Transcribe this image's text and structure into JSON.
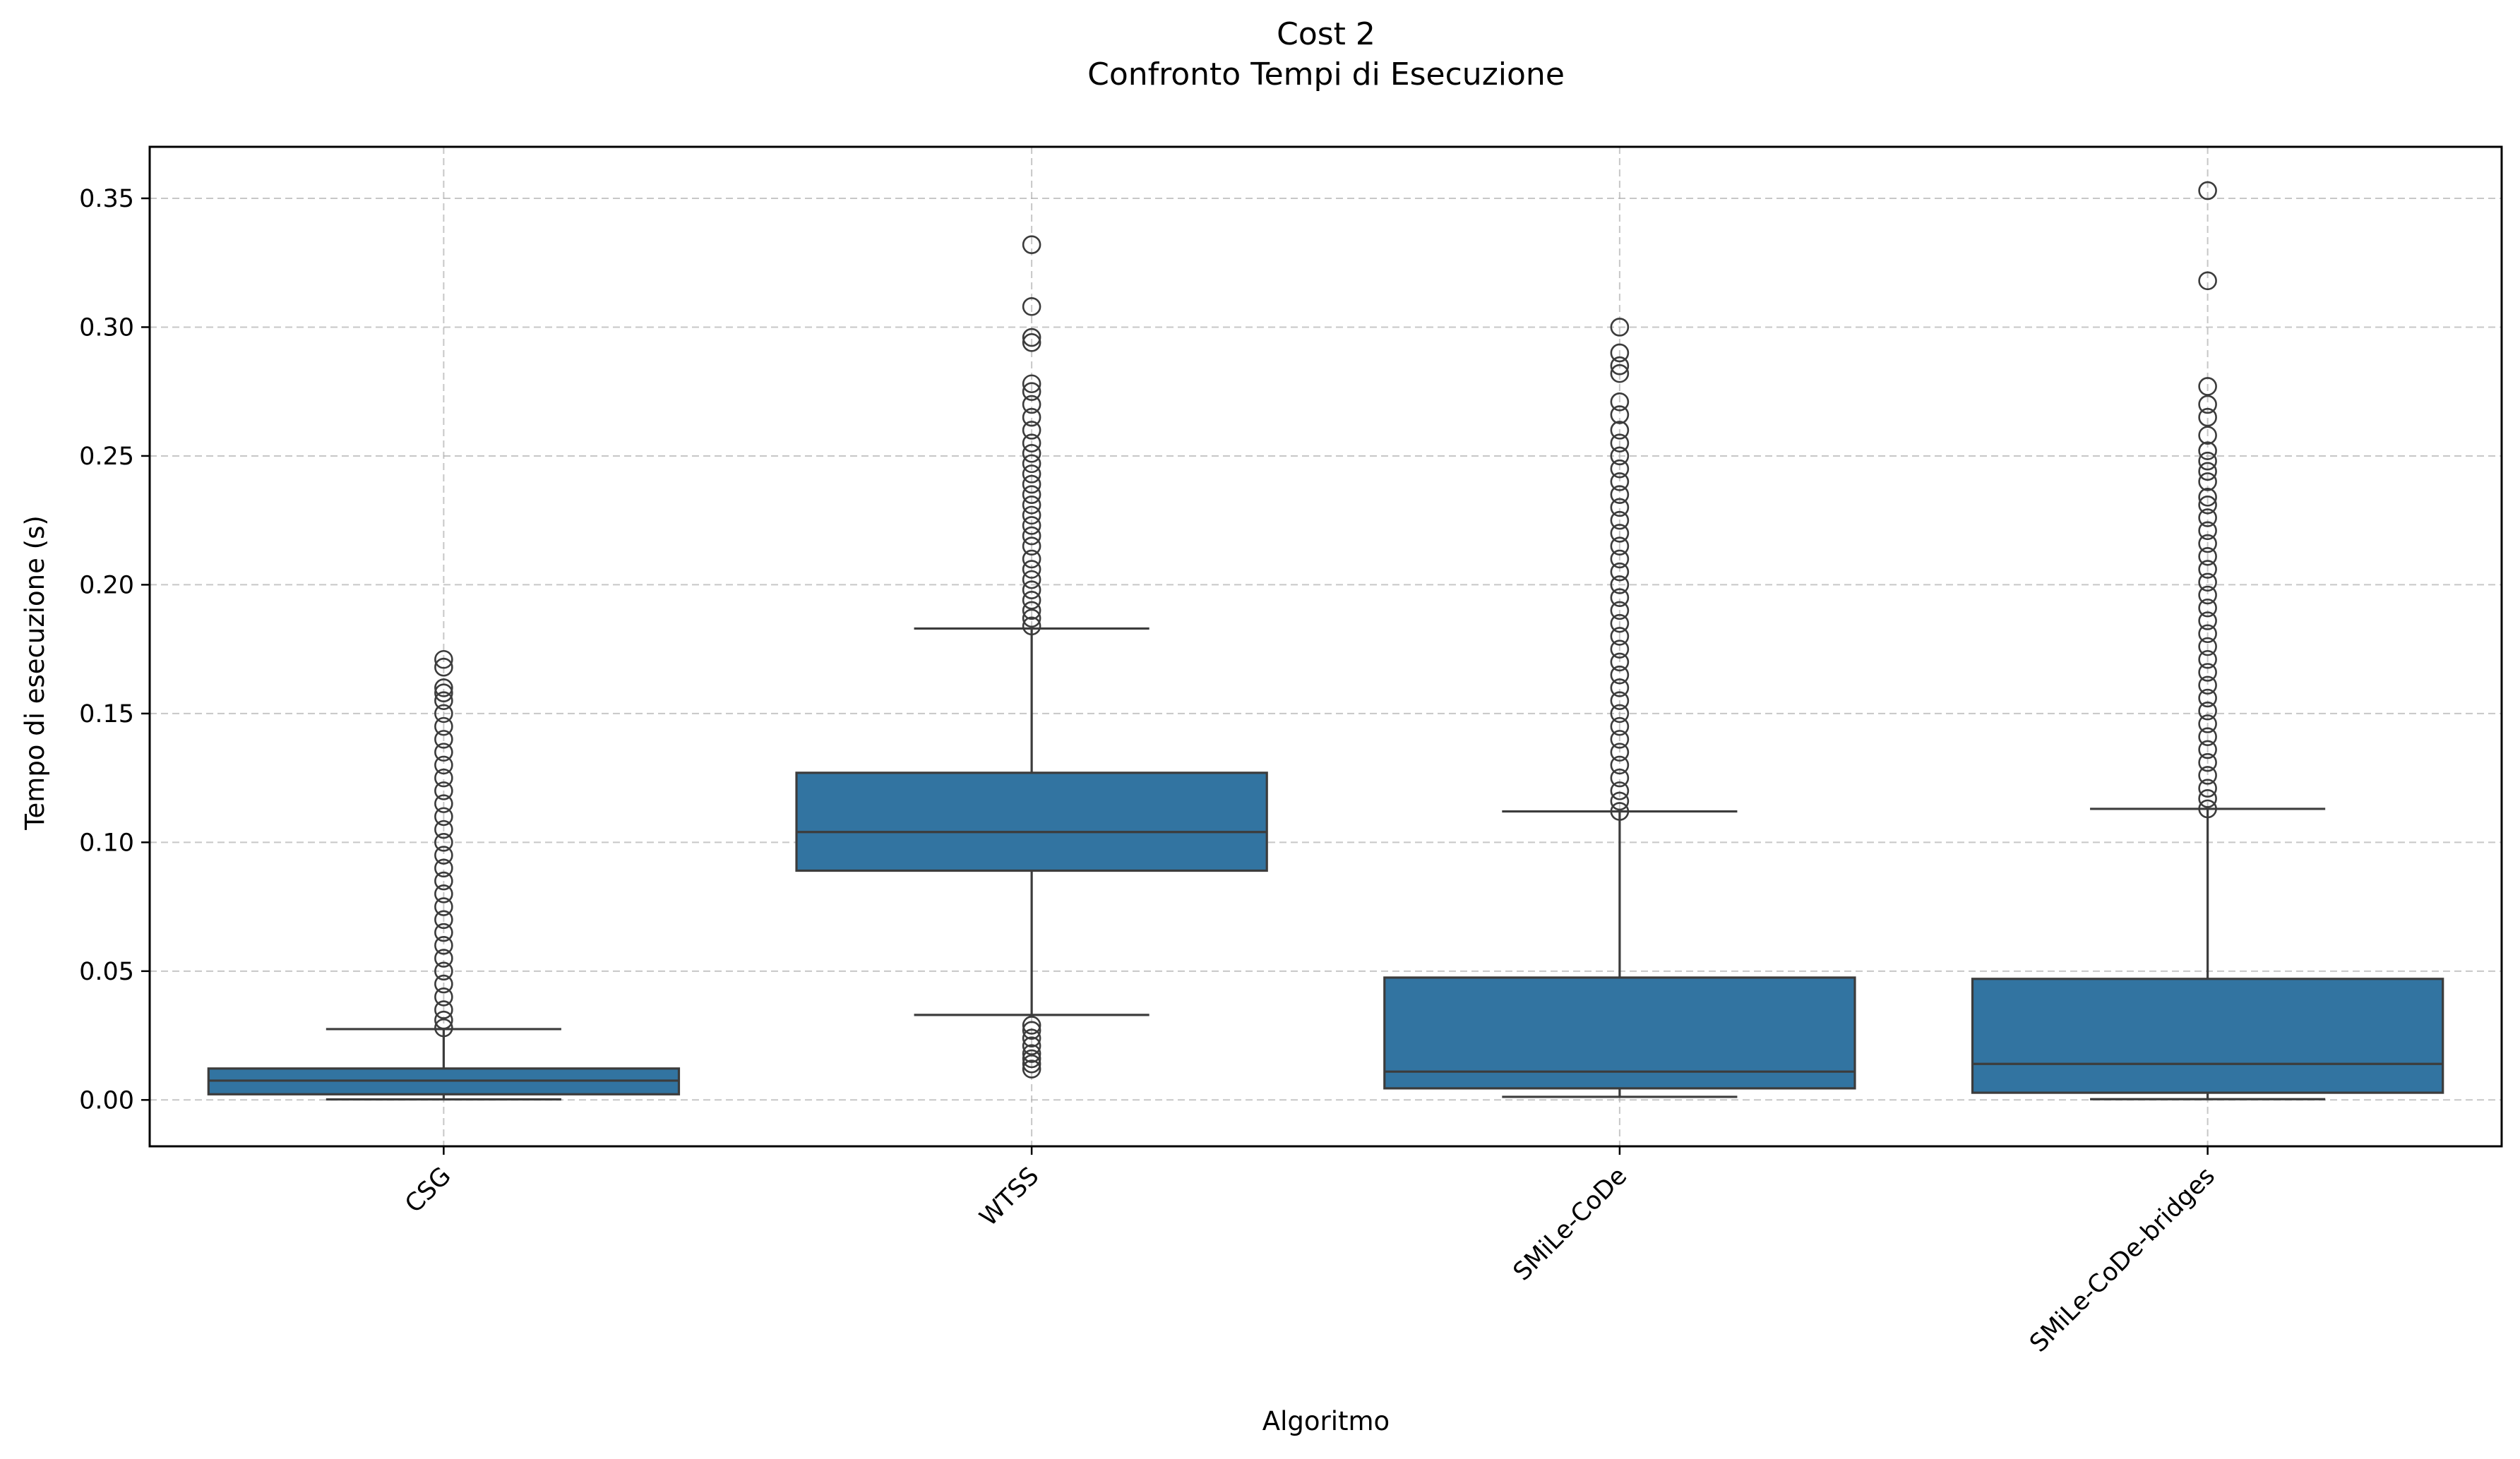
{
  "chart_data": {
    "type": "box",
    "title": "Cost 2",
    "subtitle": "Confronto Tempi di Esecuzione",
    "xlabel": "Algoritmo",
    "ylabel": "Tempo di esecuzione (s)",
    "ylim": [
      -0.018,
      0.37
    ],
    "yticks": [
      0.0,
      0.05,
      0.1,
      0.15,
      0.2,
      0.25,
      0.3,
      0.35
    ],
    "ytick_labels": [
      "0.00",
      "0.05",
      "0.10",
      "0.15",
      "0.20",
      "0.25",
      "0.30",
      "0.35"
    ],
    "grid": true,
    "box_color": "#3274a1",
    "edge_color": "#3c3c3c",
    "categories": [
      "CSG",
      "WTSS",
      "SMiLe-CoDe",
      "SMiLe-CoDe-bridges"
    ],
    "boxes": [
      {
        "category": "CSG",
        "whisker_low": 0.0002,
        "q1": 0.0022,
        "median": 0.0075,
        "q3": 0.0122,
        "whisker_high": 0.0275,
        "fliers_high": [
          0.028,
          0.031,
          0.035,
          0.04,
          0.045,
          0.05,
          0.055,
          0.06,
          0.065,
          0.07,
          0.075,
          0.08,
          0.085,
          0.09,
          0.095,
          0.1,
          0.105,
          0.11,
          0.115,
          0.12,
          0.125,
          0.13,
          0.135,
          0.14,
          0.145,
          0.15,
          0.155,
          0.158,
          0.16,
          0.168,
          0.171
        ],
        "fliers_low": []
      },
      {
        "category": "WTSS",
        "whisker_low": 0.033,
        "q1": 0.089,
        "median": 0.104,
        "q3": 0.127,
        "whisker_high": 0.183,
        "fliers_high": [
          0.184,
          0.187,
          0.19,
          0.194,
          0.198,
          0.202,
          0.206,
          0.21,
          0.215,
          0.219,
          0.223,
          0.227,
          0.231,
          0.235,
          0.239,
          0.243,
          0.247,
          0.251,
          0.255,
          0.26,
          0.265,
          0.27,
          0.275,
          0.278,
          0.294,
          0.296,
          0.308,
          0.332
        ],
        "fliers_low": [
          0.012,
          0.014,
          0.016,
          0.018,
          0.021,
          0.024,
          0.027,
          0.029
        ]
      },
      {
        "category": "SMiLe-CoDe",
        "whisker_low": 0.0012,
        "q1": 0.0045,
        "median": 0.011,
        "q3": 0.0475,
        "whisker_high": 0.112,
        "fliers_high": [
          0.112,
          0.116,
          0.12,
          0.125,
          0.13,
          0.135,
          0.14,
          0.145,
          0.15,
          0.155,
          0.16,
          0.165,
          0.17,
          0.175,
          0.18,
          0.185,
          0.19,
          0.195,
          0.2,
          0.205,
          0.21,
          0.215,
          0.22,
          0.225,
          0.23,
          0.235,
          0.24,
          0.245,
          0.25,
          0.255,
          0.26,
          0.266,
          0.271,
          0.282,
          0.285,
          0.29,
          0.3
        ],
        "fliers_low": []
      },
      {
        "category": "SMiLe-CoDe-bridges",
        "whisker_low": 0.0003,
        "q1": 0.0028,
        "median": 0.014,
        "q3": 0.047,
        "whisker_high": 0.113,
        "fliers_high": [
          0.113,
          0.117,
          0.121,
          0.126,
          0.131,
          0.136,
          0.141,
          0.146,
          0.151,
          0.156,
          0.161,
          0.166,
          0.171,
          0.176,
          0.181,
          0.186,
          0.191,
          0.196,
          0.201,
          0.206,
          0.211,
          0.216,
          0.221,
          0.226,
          0.231,
          0.234,
          0.24,
          0.244,
          0.248,
          0.252,
          0.258,
          0.265,
          0.27,
          0.277,
          0.318,
          0.353
        ],
        "fliers_low": []
      }
    ]
  }
}
